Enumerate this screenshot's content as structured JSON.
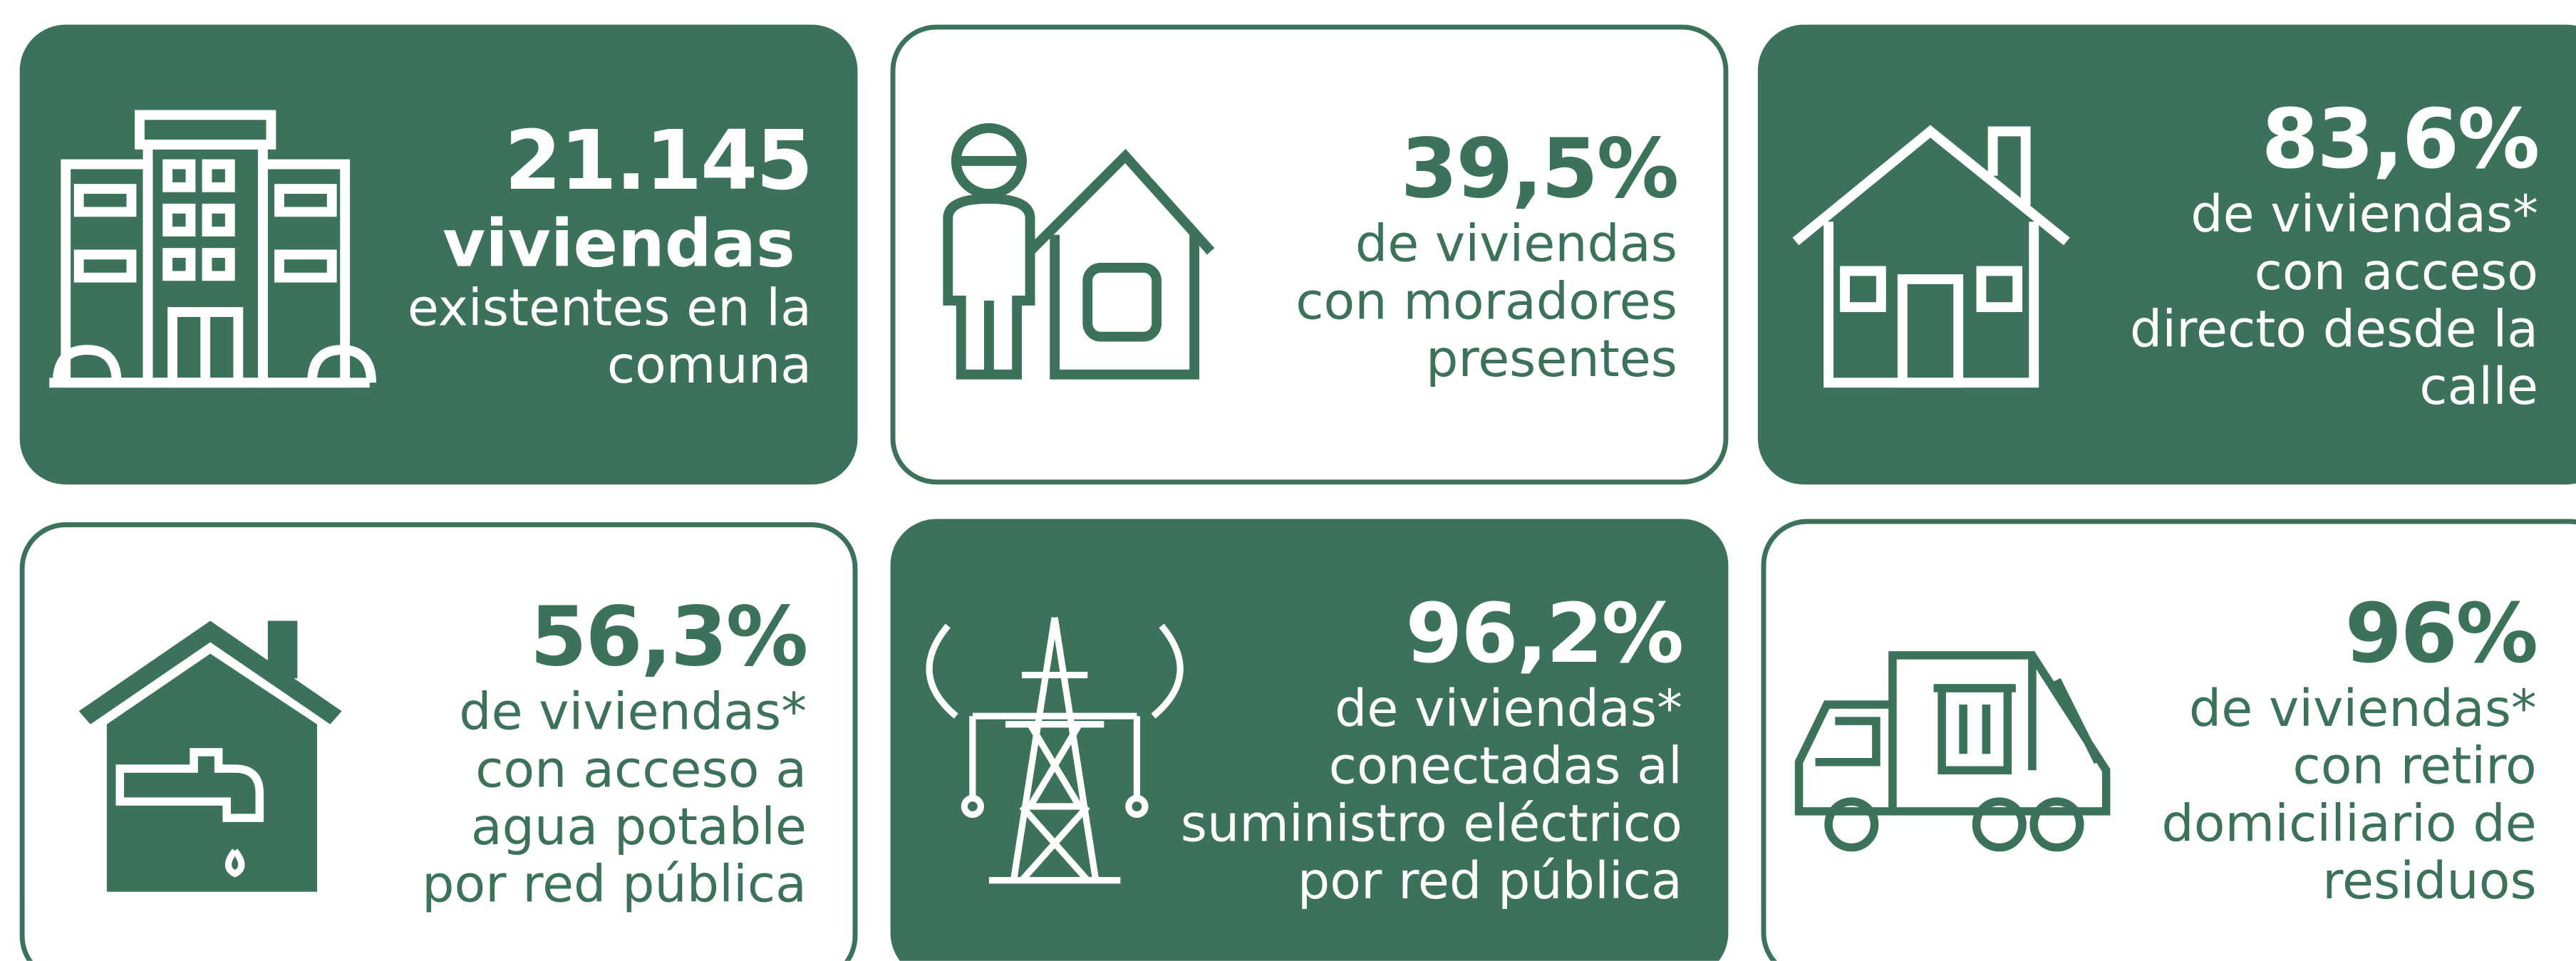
{
  "cards": [
    {
      "value": "21.145",
      "bold": "viviendas",
      "lines": [
        "existentes en la",
        "comuna"
      ]
    },
    {
      "value": "39,5%",
      "lines": [
        "de viviendas",
        "con moradores",
        "presentes"
      ]
    },
    {
      "value": "83,6%",
      "lines": [
        "de viviendas*",
        "con acceso",
        "directo desde la",
        "calle"
      ]
    },
    {
      "value": "56,3%",
      "lines": [
        "de viviendas*",
        "con acceso a",
        "agua potable",
        "por red pública"
      ]
    },
    {
      "value": "96,2%",
      "lines": [
        "de viviendas*",
        "conectadas al",
        "suministro eléctrico",
        "por red pública"
      ]
    },
    {
      "value": "96%",
      "lines": [
        "de viviendas*",
        "con retiro",
        "domiciliario de",
        "residuos"
      ]
    }
  ]
}
